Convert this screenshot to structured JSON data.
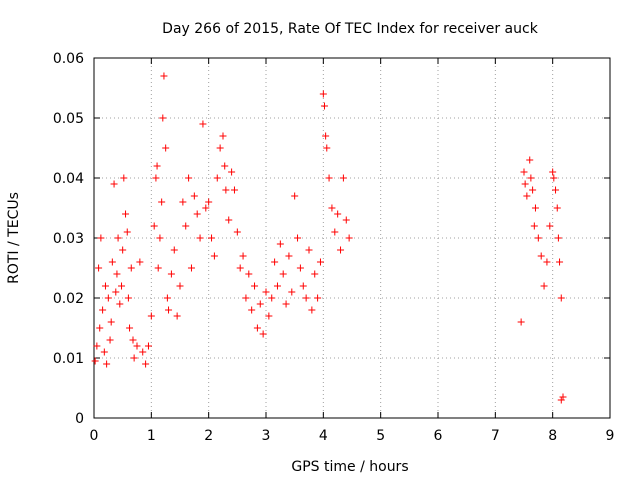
{
  "chart_data": {
    "type": "scatter",
    "title": "Day 266 of 2015, Rate Of TEC Index for receiver auck",
    "xlabel": "GPS time / hours",
    "ylabel": "ROTI / TECUs",
    "xlim": [
      0,
      9
    ],
    "ylim": [
      0,
      0.06
    ],
    "x_ticks": [
      0,
      1,
      2,
      3,
      4,
      5,
      6,
      7,
      8,
      9
    ],
    "x_tick_labels": [
      "0",
      "1",
      "2",
      "3",
      "4",
      "5",
      "6",
      "7",
      "8",
      "9"
    ],
    "y_ticks": [
      0,
      0.01,
      0.02,
      0.03,
      0.04,
      0.05,
      0.06
    ],
    "y_tick_labels": [
      "0",
      "0.01",
      "0.02",
      "0.03",
      "0.04",
      "0.05",
      "0.06"
    ],
    "grid": true,
    "marker": "+",
    "color": "#ff0000",
    "series": [
      {
        "name": "ROTI",
        "points": [
          [
            0.02,
            0.0095
          ],
          [
            0.05,
            0.012
          ],
          [
            0.08,
            0.025
          ],
          [
            0.1,
            0.015
          ],
          [
            0.12,
            0.03
          ],
          [
            0.15,
            0.018
          ],
          [
            0.18,
            0.011
          ],
          [
            0.2,
            0.022
          ],
          [
            0.22,
            0.009
          ],
          [
            0.25,
            0.02
          ],
          [
            0.28,
            0.013
          ],
          [
            0.3,
            0.016
          ],
          [
            0.32,
            0.026
          ],
          [
            0.35,
            0.039
          ],
          [
            0.38,
            0.021
          ],
          [
            0.4,
            0.024
          ],
          [
            0.42,
            0.03
          ],
          [
            0.45,
            0.019
          ],
          [
            0.48,
            0.022
          ],
          [
            0.5,
            0.028
          ],
          [
            0.52,
            0.04
          ],
          [
            0.55,
            0.034
          ],
          [
            0.58,
            0.031
          ],
          [
            0.6,
            0.02
          ],
          [
            0.62,
            0.015
          ],
          [
            0.65,
            0.025
          ],
          [
            0.68,
            0.013
          ],
          [
            0.7,
            0.01
          ],
          [
            0.75,
            0.012
          ],
          [
            0.8,
            0.026
          ],
          [
            0.85,
            0.011
          ],
          [
            0.9,
            0.009
          ],
          [
            0.95,
            0.012
          ],
          [
            1.0,
            0.017
          ],
          [
            1.05,
            0.032
          ],
          [
            1.08,
            0.04
          ],
          [
            1.1,
            0.042
          ],
          [
            1.12,
            0.025
          ],
          [
            1.15,
            0.03
          ],
          [
            1.18,
            0.036
          ],
          [
            1.2,
            0.05
          ],
          [
            1.22,
            0.057
          ],
          [
            1.25,
            0.045
          ],
          [
            1.28,
            0.02
          ],
          [
            1.3,
            0.018
          ],
          [
            1.35,
            0.024
          ],
          [
            1.4,
            0.028
          ],
          [
            1.45,
            0.017
          ],
          [
            1.5,
            0.022
          ],
          [
            1.55,
            0.036
          ],
          [
            1.6,
            0.032
          ],
          [
            1.65,
            0.04
          ],
          [
            1.7,
            0.025
          ],
          [
            1.75,
            0.037
          ],
          [
            1.8,
            0.034
          ],
          [
            1.85,
            0.03
          ],
          [
            1.9,
            0.049
          ],
          [
            1.95,
            0.035
          ],
          [
            2.0,
            0.036
          ],
          [
            2.05,
            0.03
          ],
          [
            2.1,
            0.027
          ],
          [
            2.15,
            0.04
          ],
          [
            2.2,
            0.045
          ],
          [
            2.25,
            0.047
          ],
          [
            2.28,
            0.042
          ],
          [
            2.3,
            0.038
          ],
          [
            2.35,
            0.033
          ],
          [
            2.4,
            0.041
          ],
          [
            2.45,
            0.038
          ],
          [
            2.5,
            0.031
          ],
          [
            2.55,
            0.025
          ],
          [
            2.6,
            0.027
          ],
          [
            2.65,
            0.02
          ],
          [
            2.7,
            0.024
          ],
          [
            2.75,
            0.018
          ],
          [
            2.8,
            0.022
          ],
          [
            2.85,
            0.015
          ],
          [
            2.9,
            0.019
          ],
          [
            2.95,
            0.014
          ],
          [
            3.0,
            0.021
          ],
          [
            3.05,
            0.017
          ],
          [
            3.1,
            0.02
          ],
          [
            3.15,
            0.026
          ],
          [
            3.2,
            0.022
          ],
          [
            3.25,
            0.029
          ],
          [
            3.3,
            0.024
          ],
          [
            3.35,
            0.019
          ],
          [
            3.4,
            0.027
          ],
          [
            3.45,
            0.021
          ],
          [
            3.5,
            0.037
          ],
          [
            3.55,
            0.03
          ],
          [
            3.6,
            0.025
          ],
          [
            3.65,
            0.022
          ],
          [
            3.7,
            0.02
          ],
          [
            3.75,
            0.028
          ],
          [
            3.8,
            0.018
          ],
          [
            3.85,
            0.024
          ],
          [
            3.9,
            0.02
          ],
          [
            3.95,
            0.026
          ],
          [
            4.0,
            0.054
          ],
          [
            4.02,
            0.052
          ],
          [
            4.04,
            0.047
          ],
          [
            4.06,
            0.045
          ],
          [
            4.1,
            0.04
          ],
          [
            4.15,
            0.035
          ],
          [
            4.2,
            0.031
          ],
          [
            4.25,
            0.034
          ],
          [
            4.3,
            0.028
          ],
          [
            4.35,
            0.04
          ],
          [
            4.4,
            0.033
          ],
          [
            4.45,
            0.03
          ],
          [
            7.45,
            0.016
          ],
          [
            7.5,
            0.041
          ],
          [
            7.52,
            0.039
          ],
          [
            7.55,
            0.037
          ],
          [
            7.6,
            0.043
          ],
          [
            7.62,
            0.04
          ],
          [
            7.65,
            0.038
          ],
          [
            7.68,
            0.032
          ],
          [
            7.7,
            0.035
          ],
          [
            7.75,
            0.03
          ],
          [
            7.8,
            0.027
          ],
          [
            7.85,
            0.022
          ],
          [
            7.9,
            0.026
          ],
          [
            7.95,
            0.032
          ],
          [
            8.0,
            0.041
          ],
          [
            8.02,
            0.04
          ],
          [
            8.05,
            0.038
          ],
          [
            8.08,
            0.035
          ],
          [
            8.1,
            0.03
          ],
          [
            8.12,
            0.026
          ],
          [
            8.15,
            0.02
          ],
          [
            8.18,
            0.0035
          ],
          [
            8.15,
            0.003
          ]
        ]
      }
    ]
  }
}
